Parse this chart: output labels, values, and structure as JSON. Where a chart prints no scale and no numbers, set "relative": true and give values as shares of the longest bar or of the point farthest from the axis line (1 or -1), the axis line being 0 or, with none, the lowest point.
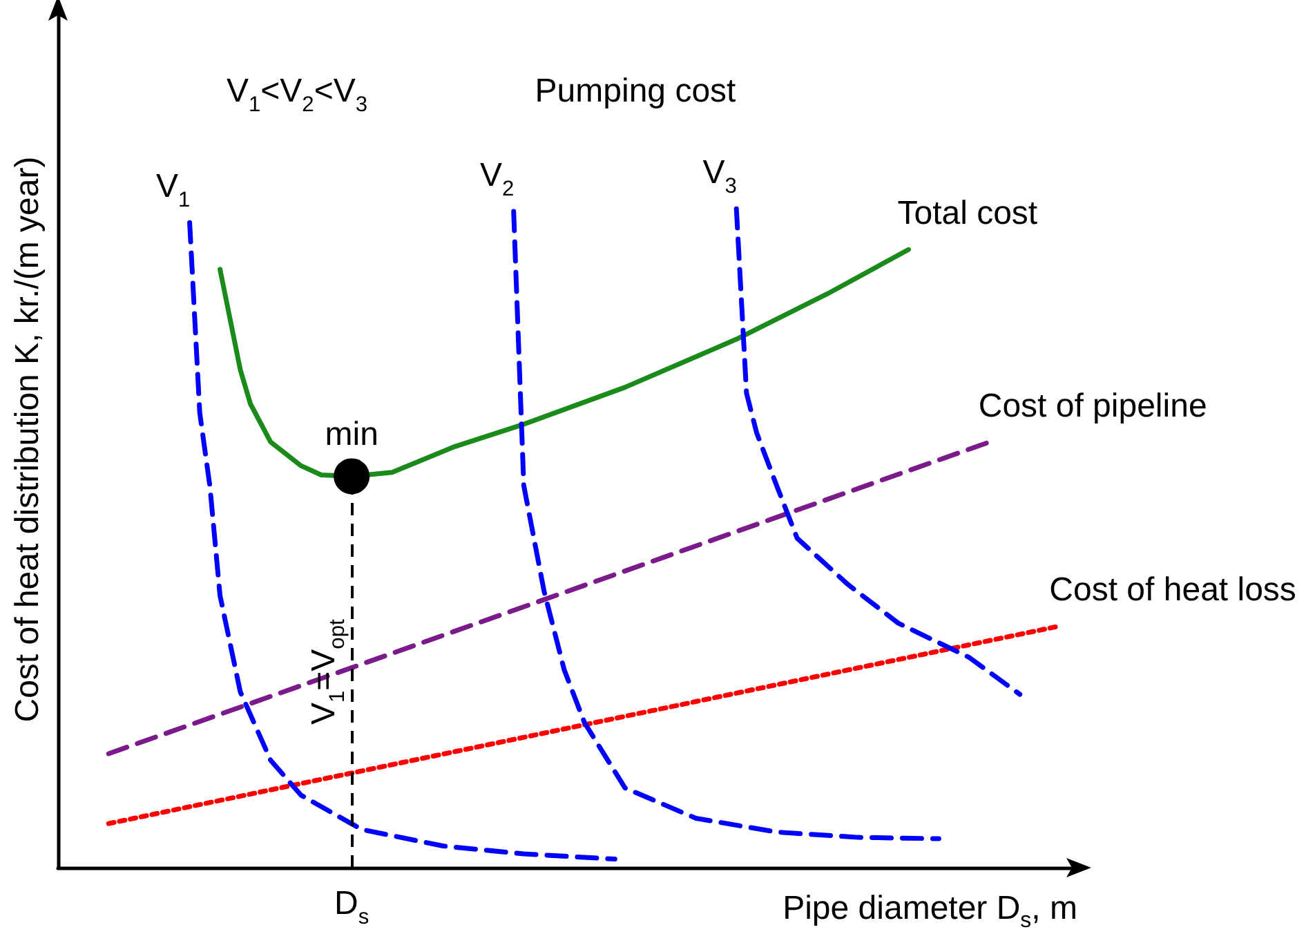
{
  "chart_data": {
    "type": "line",
    "relative": true,
    "xlabel": "Pipe diameter D$_{s}$, m",
    "ylabel": "Cost of heat distribution K, kr./(m year)",
    "legend": false,
    "grid": false,
    "marker": "none",
    "annotations": [
      "V$_{1}$<V$_{2}$<V$_{3}$",
      "Pumping cost",
      "min",
      "D$_{s}$",
      "V$_{1}$=V$_{opt}$"
    ],
    "categories": [
      null,
      null,
      null,
      null,
      null,
      null,
      null,
      null,
      null,
      null,
      null,
      null,
      null,
      null,
      null,
      null,
      null,
      null,
      null,
      null,
      null,
      null,
      null,
      null,
      null,
      null,
      null,
      null,
      null,
      null,
      null,
      null,
      null,
      null,
      null,
      null,
      null,
      null,
      null,
      null,
      null,
      null,
      null,
      null,
      null,
      null,
      null,
      null,
      null,
      null,
      null,
      null,
      null,
      null,
      null,
      null,
      null,
      null,
      null,
      null,
      null,
      null,
      null,
      null,
      null,
      null,
      null,
      null,
      null,
      null,
      null,
      null,
      null,
      null,
      null,
      null,
      null,
      null,
      null,
      null,
      null,
      null,
      null,
      null,
      null,
      null,
      null,
      null,
      null,
      null,
      null,
      null,
      null,
      null,
      null,
      null,
      null,
      null,
      null,
      null,
      null
    ],
    "series": [
      {
        "name": "Total cost",
        "color": "#1a8a1a",
        "line_style": "solid",
        "values": [
          null,
          null,
          null,
          null,
          null,
          null,
          null,
          null,
          null,
          null,
          null,
          null,
          null,
          null,
          null,
          null,
          0.908,
          null,
          0.756,
          0.704,
          null,
          0.646,
          null,
          null,
          0.61,
          null,
          0.596,
          null,
          null,
          0.594,
          null,
          null,
          null,
          0.6,
          null,
          null,
          null,
          null,
          null,
          0.638,
          null,
          null,
          null,
          null,
          null,
          null,
          0.673,
          null,
          null,
          null,
          null,
          null,
          null,
          null,
          null,
          null,
          0.729,
          null,
          null,
          null,
          null,
          null,
          null,
          null,
          null,
          null,
          null,
          0.802,
          null,
          null,
          null,
          null,
          null,
          null,
          null,
          null,
          0.871,
          null,
          null,
          null,
          null,
          null,
          null,
          null,
          0.938,
          null,
          null,
          null,
          null,
          null,
          null,
          null,
          null,
          null,
          null,
          null,
          null,
          null,
          null,
          null,
          null
        ]
      },
      {
        "name": "Cost of pipeline",
        "color": "#7b1a8a",
        "line_style": "dashed",
        "values": [
          null,
          null,
          null,
          null,
          null,
          0.173,
          null,
          null,
          null,
          null,
          null,
          null,
          null,
          null,
          null,
          null,
          null,
          null,
          null,
          null,
          null,
          null,
          null,
          null,
          null,
          null,
          null,
          null,
          null,
          null,
          null,
          null,
          null,
          null,
          null,
          null,
          null,
          null,
          null,
          null,
          null,
          null,
          null,
          null,
          null,
          null,
          null,
          null,
          null,
          null,
          null,
          null,
          null,
          null,
          null,
          null,
          null,
          null,
          null,
          null,
          null,
          null,
          null,
          null,
          null,
          null,
          null,
          null,
          null,
          null,
          null,
          null,
          null,
          null,
          null,
          null,
          null,
          null,
          null,
          null,
          null,
          null,
          null,
          null,
          null,
          null,
          null,
          null,
          null,
          null,
          null,
          null,
          0.646,
          null,
          null,
          null,
          null,
          null,
          null,
          null,
          null
        ]
      },
      {
        "name": "Cost of heat loss",
        "color": "#ff0000",
        "line_style": "dotted",
        "values": [
          null,
          null,
          null,
          null,
          null,
          0.067,
          null,
          null,
          null,
          null,
          null,
          null,
          null,
          null,
          null,
          null,
          null,
          null,
          null,
          null,
          null,
          null,
          null,
          null,
          null,
          null,
          null,
          null,
          null,
          null,
          null,
          null,
          null,
          null,
          null,
          null,
          null,
          null,
          null,
          null,
          null,
          null,
          null,
          null,
          null,
          null,
          null,
          null,
          null,
          null,
          null,
          null,
          null,
          null,
          null,
          null,
          null,
          null,
          null,
          null,
          null,
          null,
          null,
          null,
          null,
          null,
          null,
          null,
          null,
          null,
          null,
          null,
          null,
          null,
          null,
          null,
          null,
          null,
          null,
          null,
          null,
          null,
          null,
          null,
          null,
          null,
          null,
          null,
          null,
          null,
          null,
          null,
          null,
          null,
          null,
          null,
          null,
          null,
          null,
          0.367,
          null
        ]
      },
      {
        "name": "V$_{1}$",
        "color": "#0000ff",
        "line_style": "dashed",
        "values": [
          null,
          null,
          null,
          null,
          null,
          null,
          null,
          null,
          null,
          null,
          null,
          null,
          null,
          0.979,
          0.69,
          0.579,
          0.413,
          null,
          0.267,
          null,
          null,
          0.163,
          null,
          null,
          0.11,
          null,
          null,
          null,
          null,
          null,
          0.058,
          null,
          null,
          null,
          null,
          null,
          null,
          null,
          0.033,
          null,
          null,
          null,
          null,
          null,
          null,
          null,
          0.021,
          null,
          null,
          null,
          null,
          null,
          null,
          null,
          null,
          0.013,
          null,
          null,
          null,
          null,
          null,
          null,
          null,
          null,
          null,
          null,
          null,
          null,
          null,
          null,
          null,
          null,
          null,
          null,
          null,
          null,
          null,
          null,
          null,
          null,
          null,
          null,
          null,
          null,
          null,
          null,
          null,
          null,
          null,
          null,
          null,
          null,
          null,
          null,
          null,
          null,
          null,
          null,
          null,
          null,
          null
        ]
      },
      {
        "name": "V$_{2}$",
        "color": "#0000ff",
        "line_style": "dashed",
        "values": [
          null,
          null,
          null,
          null,
          null,
          null,
          null,
          null,
          null,
          null,
          null,
          null,
          null,
          null,
          null,
          null,
          null,
          null,
          null,
          null,
          null,
          null,
          null,
          null,
          null,
          null,
          null,
          null,
          null,
          null,
          null,
          null,
          null,
          null,
          null,
          null,
          null,
          null,
          null,
          null,
          null,
          null,
          null,
          null,
          null,
          0.996,
          0.58,
          null,
          0.42,
          null,
          0.3,
          null,
          0.22,
          null,
          null,
          null,
          0.121,
          null,
          null,
          null,
          null,
          null,
          null,
          0.075,
          null,
          null,
          null,
          null,
          null,
          null,
          null,
          0.054,
          null,
          null,
          null,
          null,
          null,
          null,
          null,
          0.046,
          null,
          null,
          null,
          null,
          null,
          null,
          null,
          0.044,
          null,
          null,
          null,
          null,
          null,
          null,
          null,
          null,
          null,
          null,
          null,
          null,
          null
        ]
      },
      {
        "name": "V$_{3}$",
        "color": "#0000ff",
        "line_style": "dashed",
        "values": [
          null,
          null,
          null,
          null,
          null,
          null,
          null,
          null,
          null,
          null,
          null,
          null,
          null,
          null,
          null,
          null,
          null,
          null,
          null,
          null,
          null,
          null,
          null,
          null,
          null,
          null,
          null,
          null,
          null,
          null,
          null,
          null,
          null,
          null,
          null,
          null,
          null,
          null,
          null,
          null,
          null,
          null,
          null,
          null,
          null,
          null,
          null,
          null,
          null,
          null,
          null,
          null,
          null,
          null,
          null,
          null,
          null,
          null,
          null,
          null,
          null,
          null,
          null,
          null,
          null,
          null,
          null,
          1.0,
          0.72,
          0.66,
          null,
          0.579,
          null,
          0.5,
          null,
          null,
          null,
          null,
          0.43,
          null,
          null,
          null,
          null,
          0.371,
          null,
          null,
          null,
          null,
          null,
          null,
          0.319,
          null,
          null,
          null,
          null,
          0.263,
          null,
          null,
          null,
          null,
          null
        ]
      }
    ]
  }
}
